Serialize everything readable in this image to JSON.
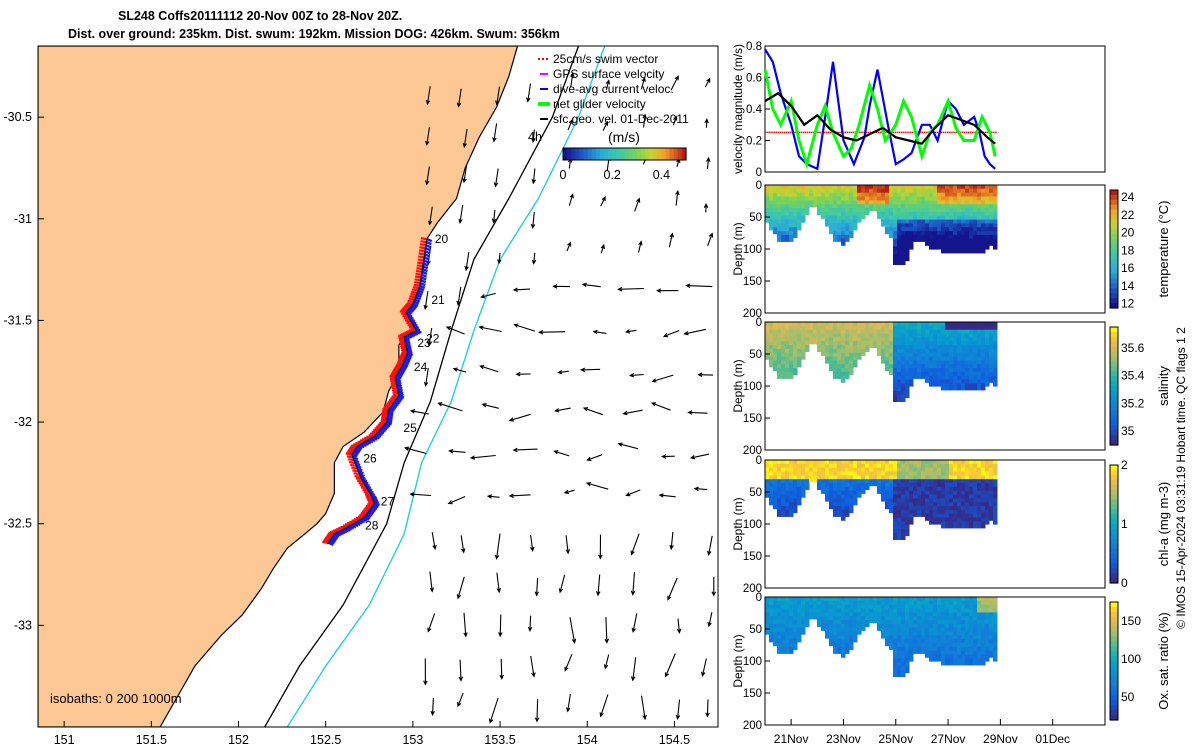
{
  "header": {
    "title_line1": "SL248 Coffs20111112 20-Nov 00Z to 28-Nov 20Z.",
    "title_line2": "Dist. over ground: 235km. Dist. swum: 192km. Mission DOG: 426km. Swum: 356km"
  },
  "chart_data": [
    {
      "type": "scatter",
      "name": "glider-track-map",
      "x_ticks": [
        "151",
        "151.5",
        "152",
        "152.5",
        "153",
        "153.5",
        "154",
        "154.5"
      ],
      "x_tick_values": [
        151,
        151.5,
        152,
        152.5,
        153,
        153.5,
        154,
        154.5
      ],
      "y_ticks": [
        "-30.5",
        "-31",
        "-31.5",
        "-32",
        "-32.5",
        "-33"
      ],
      "y_tick_values": [
        -30.5,
        -31,
        -31.5,
        -32,
        -32.5,
        -33
      ],
      "xlim": [
        150.85,
        154.75
      ],
      "ylim": [
        -33.5,
        -30.15
      ],
      "legend": [
        {
          "label": "25cm/s swim vector",
          "color": "#ff0000"
        },
        {
          "label": "GPS surface velocity",
          "color": "#ff00ff"
        },
        {
          "label": "dive-avg current veloc.",
          "color": "#0000ff"
        },
        {
          "label": "net glider velocity",
          "color": "#00ff00"
        },
        {
          "label": "sfc geo. vel. 01-Dec-2011",
          "color": "#000000"
        }
      ],
      "legend_position": "top-right",
      "colorbar_label": "(m/s)",
      "colorbar_ticks": [
        "0",
        "0.2",
        "0.4"
      ],
      "colorbar_tick_values": [
        0,
        0.2,
        0.4
      ],
      "colorbar_range": [
        0,
        0.5
      ],
      "annotation_4h": "4h",
      "isobaths_label": "isobaths: 0   200  1000m",
      "track_day_labels": [
        {
          "label": "20",
          "lon": 153.08,
          "lat": -31.1
        },
        {
          "label": "21",
          "lon": 153.06,
          "lat": -31.4
        },
        {
          "label": "22",
          "lon": 153.03,
          "lat": -31.59
        },
        {
          "label": "23",
          "lon": 152.98,
          "lat": -31.61
        },
        {
          "label": "24",
          "lon": 152.96,
          "lat": -31.73
        },
        {
          "label": "25",
          "lon": 152.9,
          "lat": -32.03
        },
        {
          "label": "26",
          "lon": 152.67,
          "lat": -32.18
        },
        {
          "label": "27",
          "lon": 152.77,
          "lat": -32.39
        },
        {
          "label": "28",
          "lon": 152.68,
          "lat": -32.51
        }
      ],
      "track": [
        [
          153.08,
          -31.1
        ],
        [
          153.06,
          -31.22
        ],
        [
          153.04,
          -31.33
        ],
        [
          153.0,
          -31.42
        ],
        [
          152.96,
          -31.46
        ],
        [
          153.02,
          -31.55
        ],
        [
          152.95,
          -31.58
        ],
        [
          152.97,
          -31.66
        ],
        [
          152.94,
          -31.72
        ],
        [
          152.9,
          -31.78
        ],
        [
          152.92,
          -31.87
        ],
        [
          152.86,
          -31.94
        ],
        [
          152.85,
          -32.0
        ],
        [
          152.78,
          -32.07
        ],
        [
          152.68,
          -32.12
        ],
        [
          152.65,
          -32.16
        ],
        [
          152.7,
          -32.27
        ],
        [
          152.76,
          -32.36
        ],
        [
          152.78,
          -32.4
        ],
        [
          152.72,
          -32.47
        ],
        [
          152.62,
          -32.52
        ],
        [
          152.55,
          -32.55
        ],
        [
          152.51,
          -32.6
        ]
      ]
    },
    {
      "type": "line",
      "name": "velocity-magnitude",
      "ylabel": "velocity magnitude (m/s)",
      "ylim": [
        0,
        0.8
      ],
      "y_ticks": [
        "0",
        "0.2",
        "0.4",
        "0.6",
        "0.8"
      ],
      "y_tick_values": [
        0,
        0.2,
        0.4,
        0.6,
        0.8
      ],
      "x_day_range": [
        20,
        33
      ],
      "series": [
        {
          "name": "dive-avg current",
          "color": "#0000ff",
          "x": [
            20.0,
            20.3,
            20.6,
            21.0,
            21.3,
            21.6,
            22.0,
            22.3,
            22.6,
            23.0,
            23.4,
            23.8,
            24.0,
            24.3,
            24.7,
            25.0,
            25.3,
            25.6,
            26.0,
            26.3,
            26.6,
            27.0,
            27.3,
            27.6,
            28.0,
            28.2,
            28.4,
            28.6,
            28.8
          ],
          "y": [
            0.78,
            0.7,
            0.5,
            0.3,
            0.1,
            0.05,
            0.02,
            0.35,
            0.7,
            0.2,
            0.05,
            0.22,
            0.42,
            0.65,
            0.3,
            0.05,
            0.08,
            0.12,
            0.3,
            0.3,
            0.2,
            0.45,
            0.4,
            0.3,
            0.35,
            0.25,
            0.1,
            0.05,
            0.02
          ]
        },
        {
          "name": "net glider",
          "color": "#00ff00",
          "x": [
            20.0,
            20.3,
            20.6,
            21.0,
            21.3,
            21.6,
            22.0,
            22.3,
            22.6,
            23.0,
            23.3,
            23.6,
            24.0,
            24.3,
            24.6,
            25.0,
            25.3,
            25.6,
            26.0,
            26.3,
            26.6,
            27.0,
            27.3,
            27.6,
            28.0,
            28.3,
            28.6,
            28.8
          ],
          "y": [
            0.65,
            0.4,
            0.3,
            0.45,
            0.2,
            0.05,
            0.3,
            0.42,
            0.25,
            0.1,
            0.15,
            0.3,
            0.55,
            0.4,
            0.2,
            0.3,
            0.45,
            0.35,
            0.1,
            0.25,
            0.3,
            0.45,
            0.28,
            0.2,
            0.2,
            0.35,
            0.25,
            0.1
          ]
        },
        {
          "name": "sfc geo.",
          "color": "#000000",
          "x": [
            20.0,
            20.5,
            21.0,
            21.5,
            22.0,
            22.5,
            23.0,
            23.5,
            24.0,
            24.5,
            25.0,
            25.5,
            26.0,
            26.5,
            27.0,
            27.5,
            28.0,
            28.5,
            28.8
          ],
          "y": [
            0.45,
            0.5,
            0.42,
            0.3,
            0.36,
            0.27,
            0.22,
            0.2,
            0.24,
            0.28,
            0.22,
            0.2,
            0.18,
            0.28,
            0.36,
            0.33,
            0.3,
            0.22,
            0.18
          ]
        }
      ]
    },
    {
      "type": "heatmap",
      "name": "temperature-section",
      "ylabel": "Depth (m)",
      "y_ticks": [
        "0",
        "50",
        "100",
        "150",
        "200"
      ],
      "y_tick_values": [
        0,
        50,
        100,
        150,
        200
      ],
      "colorbar_label": "temperature (°C)",
      "colorbar_ticks": [
        "24",
        "22",
        "20",
        "18",
        "16",
        "14",
        "12"
      ],
      "colorbar_tick_values": [
        24,
        22,
        20,
        18,
        16,
        14,
        12
      ],
      "colorbar_range": [
        11.5,
        24.8
      ]
    },
    {
      "type": "heatmap",
      "name": "salinity-section",
      "ylabel": "Depth (m)",
      "y_ticks": [
        "0",
        "50",
        "100",
        "150",
        "200"
      ],
      "y_tick_values": [
        0,
        50,
        100,
        150,
        200
      ],
      "colorbar_label": "salinity",
      "colorbar_ticks": [
        "35.6",
        "35.4",
        "35.2",
        "35"
      ],
      "colorbar_tick_values": [
        35.6,
        35.4,
        35.2,
        35.0
      ],
      "colorbar_range": [
        34.9,
        35.75
      ]
    },
    {
      "type": "heatmap",
      "name": "chlorophyll-section",
      "ylabel": "Depth (m)",
      "y_ticks": [
        "0",
        "50",
        "100",
        "150",
        "200"
      ],
      "y_tick_values": [
        0,
        50,
        100,
        150,
        200
      ],
      "colorbar_label": "chl-a (mg m-3)",
      "colorbar_ticks": [
        "2",
        "1",
        "0"
      ],
      "colorbar_tick_values": [
        2,
        1,
        0
      ],
      "colorbar_range": [
        0,
        2
      ]
    },
    {
      "type": "heatmap",
      "name": "oxygen-section",
      "ylabel": "Depth (m)",
      "y_ticks": [
        "0",
        "50",
        "100",
        "150",
        "200"
      ],
      "y_tick_values": [
        0,
        50,
        100,
        150,
        200
      ],
      "colorbar_label": "Ox. sat. ratio (%)",
      "colorbar_ticks": [
        "150",
        "100",
        "50"
      ],
      "colorbar_tick_values": [
        150,
        100,
        50
      ],
      "colorbar_range": [
        20,
        175
      ]
    }
  ],
  "time_axis": {
    "day_range": [
      20,
      33
    ],
    "ticks": [
      {
        "label": "21Nov",
        "day": 21
      },
      {
        "label": "23Nov",
        "day": 23
      },
      {
        "label": "25Nov",
        "day": 25
      },
      {
        "label": "27Nov",
        "day": 27
      },
      {
        "label": "29Nov",
        "day": 29
      },
      {
        "label": "01Dec",
        "day": 31
      }
    ]
  },
  "credit": "© IMOS 15-Apr-2024 03:31:19 Hobart time. QC flags 1  2"
}
